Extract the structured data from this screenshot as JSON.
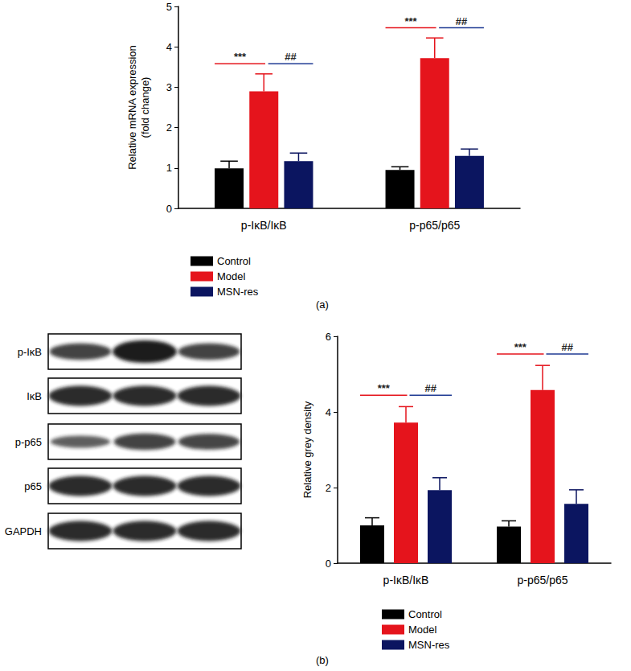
{
  "chart_data": [
    {
      "type": "bar",
      "panel_label": "(a)",
      "ylabel": "Relative mRNA expression\n(fold change)",
      "categories": [
        "p-IκB/IκB",
        "p-p65/p65"
      ],
      "ylim": [
        0,
        5
      ],
      "yticks": [
        0,
        1,
        2,
        3,
        4,
        5
      ],
      "grid": false,
      "legend": "bottom",
      "series": [
        {
          "name": "Control",
          "color": "#000000",
          "values": [
            0.99,
            0.95
          ],
          "errors": [
            0.18,
            0.08
          ]
        },
        {
          "name": "Model",
          "color": "#e5141c",
          "values": [
            2.9,
            3.72
          ],
          "errors": [
            0.43,
            0.5
          ]
        },
        {
          "name": "MSN-res",
          "color": "#0b1560",
          "values": [
            1.17,
            1.3
          ],
          "errors": [
            0.2,
            0.17
          ]
        }
      ],
      "annotations": [
        {
          "text": "***",
          "category": "p-IκB/IκB",
          "from": "Control",
          "to": "Model",
          "color": "#e5141c"
        },
        {
          "text": "##",
          "category": "p-IκB/IκB",
          "from": "Model",
          "to": "MSN-res",
          "color": "#1f3a93"
        },
        {
          "text": "***",
          "category": "p-p65/p65",
          "from": "Control",
          "to": "Model",
          "color": "#e5141c"
        },
        {
          "text": "##",
          "category": "p-p65/p65",
          "from": "Model",
          "to": "MSN-res",
          "color": "#1f3a93"
        }
      ]
    },
    {
      "type": "bar",
      "panel_label": "(b)",
      "ylabel": "Relative grey density",
      "categories": [
        "p-IκB/IκB",
        "p-p65/p65"
      ],
      "ylim": [
        0,
        6
      ],
      "yticks": [
        0,
        2,
        4,
        6
      ],
      "grid": false,
      "legend": "bottom",
      "series": [
        {
          "name": "Control",
          "color": "#000000",
          "values": [
            1.0,
            0.97
          ],
          "errors": [
            0.2,
            0.15
          ]
        },
        {
          "name": "Model",
          "color": "#e5141c",
          "values": [
            3.72,
            4.58
          ],
          "errors": [
            0.42,
            0.65
          ]
        },
        {
          "name": "MSN-res",
          "color": "#0b1560",
          "values": [
            1.93,
            1.57
          ],
          "errors": [
            0.33,
            0.37
          ]
        }
      ],
      "annotations": [
        {
          "text": "***",
          "category": "p-IκB/IκB",
          "from": "Control",
          "to": "Model",
          "color": "#e5141c"
        },
        {
          "text": "##",
          "category": "p-IκB/IκB",
          "from": "Model",
          "to": "MSN-res",
          "color": "#1f3a93"
        },
        {
          "text": "***",
          "category": "p-p65/p65",
          "from": "Control",
          "to": "Model",
          "color": "#e5141c"
        },
        {
          "text": "##",
          "category": "p-p65/p65",
          "from": "Model",
          "to": "MSN-res",
          "color": "#1f3a93"
        }
      ]
    }
  ],
  "blot": {
    "labels": [
      "p-IκB",
      "IκB",
      "p-p65",
      "p65",
      "GAPDH"
    ]
  }
}
